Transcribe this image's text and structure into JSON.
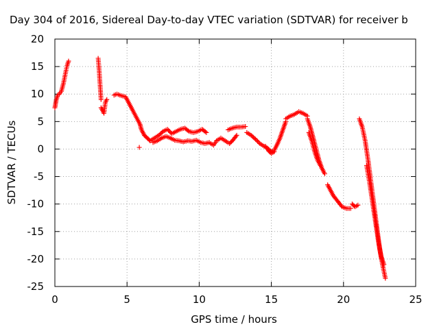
{
  "chart_data": {
    "type": "scatter",
    "title": "Day 304 of 2016, Sidereal Day-to-day VTEC variation (SDTVAR) for receiver b",
    "xlabel": "GPS time / hours",
    "ylabel": "SDTVAR / TECUs",
    "xlim": [
      0,
      25
    ],
    "ylim": [
      -25,
      20
    ],
    "xticks": [
      "0",
      "5",
      "10",
      "15",
      "20",
      "25"
    ],
    "yticks": [
      "20",
      "15",
      "10",
      "5",
      "0",
      "-5",
      "-10",
      "-15",
      "-20",
      "-25"
    ],
    "grid": true,
    "marker": "+",
    "color": "#ff0000",
    "segments": [
      {
        "x": [
          0.0,
          0.1,
          0.2,
          0.3,
          0.45,
          0.6,
          0.75,
          0.85,
          0.95
        ],
        "y": [
          7.5,
          9.0,
          9.8,
          10.0,
          10.5,
          12.0,
          14.0,
          15.2,
          16.0
        ]
      },
      {
        "x": [
          3.0,
          3.05,
          3.1,
          3.15,
          3.2
        ],
        "y": [
          16.5,
          15.0,
          13.0,
          11.0,
          9.0
        ]
      },
      {
        "x": [
          3.2,
          3.3,
          3.4,
          3.5,
          3.6
        ],
        "y": [
          7.5,
          7.0,
          6.5,
          8.5,
          9.0
        ]
      },
      {
        "x": [
          4.1,
          4.3,
          4.6,
          4.9,
          5.1,
          5.3,
          5.5,
          5.7,
          5.9,
          6.0,
          6.2,
          6.4,
          6.6
        ],
        "y": [
          9.8,
          10.0,
          9.7,
          9.5,
          8.5,
          7.5,
          6.5,
          5.5,
          4.5,
          3.5,
          2.5,
          2.0,
          1.5
        ]
      },
      {
        "x": [
          5.85
        ],
        "y": [
          0.3
        ]
      },
      {
        "x": [
          6.6,
          6.9,
          7.2,
          7.5,
          7.8,
          8.1,
          8.4,
          8.7,
          9.0,
          9.3,
          9.6,
          9.9,
          10.2,
          10.5
        ],
        "y": [
          1.5,
          2.0,
          2.5,
          3.2,
          3.6,
          2.8,
          3.2,
          3.6,
          3.8,
          3.2,
          3.0,
          3.2,
          3.6,
          3.0
        ]
      },
      {
        "x": [
          6.8,
          7.1,
          7.4,
          7.7,
          8.0,
          8.3,
          8.6,
          8.9,
          9.2,
          9.5,
          9.8,
          10.1,
          10.4,
          10.7
        ],
        "y": [
          1.2,
          1.5,
          2.0,
          2.3,
          2.0,
          1.6,
          1.5,
          1.3,
          1.5,
          1.4,
          1.6,
          1.2,
          1.0,
          1.2
        ]
      },
      {
        "x": [
          10.8,
          11.0,
          11.2,
          11.5,
          11.8,
          12.1,
          12.3,
          12.6
        ],
        "y": [
          1.0,
          0.7,
          1.5,
          2.0,
          1.5,
          1.0,
          1.5,
          2.5
        ]
      },
      {
        "x": [
          12.0,
          12.3,
          12.6,
          12.9,
          13.2
        ],
        "y": [
          3.5,
          3.8,
          4.0,
          4.0,
          4.1
        ]
      },
      {
        "x": [
          13.3,
          13.6,
          13.9,
          14.2,
          14.5,
          14.8,
          15.0,
          15.2,
          15.4,
          15.6,
          15.8,
          16.0
        ],
        "y": [
          3.0,
          2.5,
          1.8,
          1.0,
          0.5,
          0.0,
          -0.5,
          -0.2,
          0.8,
          2.0,
          3.5,
          5.0
        ]
      },
      {
        "x": [
          14.6,
          14.8,
          15.0,
          15.2
        ],
        "y": [
          0.5,
          -0.3,
          -0.8,
          -0.5
        ]
      },
      {
        "x": [
          16.0,
          16.3,
          16.6,
          16.9,
          17.2,
          17.5
        ],
        "y": [
          5.5,
          6.0,
          6.3,
          6.8,
          6.5,
          6.0
        ]
      },
      {
        "x": [
          17.5,
          17.7,
          17.9,
          18.1,
          18.3,
          18.5,
          18.7
        ],
        "y": [
          5.5,
          4.0,
          2.0,
          0.0,
          -2.0,
          -3.5,
          -4.5
        ]
      },
      {
        "x": [
          17.6,
          17.8,
          18.0,
          18.2,
          18.4
        ],
        "y": [
          3.0,
          1.5,
          -0.5,
          -2.0,
          -3.0
        ]
      },
      {
        "x": [
          18.9,
          19.1,
          19.3,
          19.6,
          19.9,
          20.2,
          20.5
        ],
        "y": [
          -6.5,
          -7.5,
          -8.5,
          -9.5,
          -10.5,
          -10.8,
          -10.8
        ]
      },
      {
        "x": [
          20.6,
          20.8,
          21.0
        ],
        "y": [
          -10.0,
          -10.5,
          -10.2
        ]
      },
      {
        "x": [
          21.1,
          21.3,
          21.5,
          21.7,
          21.9,
          22.1,
          22.3,
          22.5,
          22.7,
          22.9
        ],
        "y": [
          5.5,
          4.0,
          1.5,
          -2.0,
          -6.0,
          -10.0,
          -14.0,
          -18.0,
          -21.0,
          -23.5
        ]
      },
      {
        "x": [
          21.6,
          21.8,
          22.0,
          22.2,
          22.4,
          22.6,
          22.8
        ],
        "y": [
          -3.0,
          -6.0,
          -9.5,
          -13.0,
          -16.5,
          -19.5,
          -21.0
        ]
      }
    ]
  }
}
